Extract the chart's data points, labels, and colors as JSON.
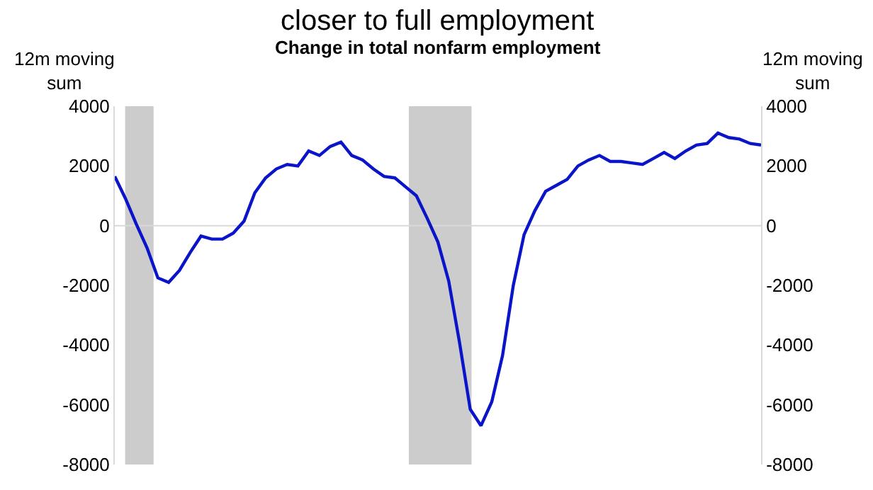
{
  "chart_data": {
    "type": "line",
    "title": "closer to full employment",
    "subtitle": "Change in total nonfarm employment",
    "ylabel": "12m moving sum",
    "y2label": "12m moving sum",
    "categories": [
      null,
      null,
      null,
      null,
      null,
      null,
      null,
      null,
      null,
      null,
      null,
      null,
      null,
      null,
      null,
      null,
      null,
      null,
      null,
      null,
      null,
      null,
      null,
      null,
      null,
      null,
      null,
      null,
      null,
      null,
      null,
      null,
      null,
      null,
      null,
      null,
      null,
      null,
      null,
      null,
      null,
      null,
      null,
      null,
      null,
      null,
      null,
      null,
      null,
      null,
      null,
      null,
      null,
      null,
      null,
      null,
      null,
      null,
      null,
      null,
      null
    ],
    "series": [
      {
        "color": "#0a14c8",
        "values": [
          1650,
          900,
          50,
          -750,
          -1750,
          -1900,
          -1500,
          -900,
          -350,
          -450,
          -450,
          -250,
          150,
          1100,
          1600,
          1900,
          2050,
          2000,
          2500,
          2350,
          2650,
          2800,
          2350,
          2200,
          1900,
          1650,
          1600,
          1300,
          1000,
          250,
          -550,
          -1850,
          -3900,
          -6150,
          -6700,
          -5900,
          -4350,
          -2000,
          -300,
          500,
          1150,
          1350,
          1550,
          2000,
          2200,
          2350,
          2150,
          2150,
          2100,
          2050,
          2250,
          2450,
          2250,
          2500,
          2700,
          2750,
          3100,
          2950,
          2900,
          2750,
          2700
        ]
      }
    ],
    "ylim": [
      -8000,
      4000
    ],
    "yticks": [
      -8000,
      -6000,
      -4000,
      -2000,
      0,
      2000,
      4000
    ],
    "y2lim": [
      -8000,
      4000
    ],
    "y2ticks": [
      -8000,
      -6000,
      -4000,
      -2000,
      0,
      2000,
      4000
    ],
    "ref_lines": [
      {
        "axis": "y",
        "value": 0,
        "color": "#d9d9d9"
      }
    ],
    "tick_labels": "y",
    "grid": false,
    "marker": "none",
    "line_style": "solid"
  }
}
